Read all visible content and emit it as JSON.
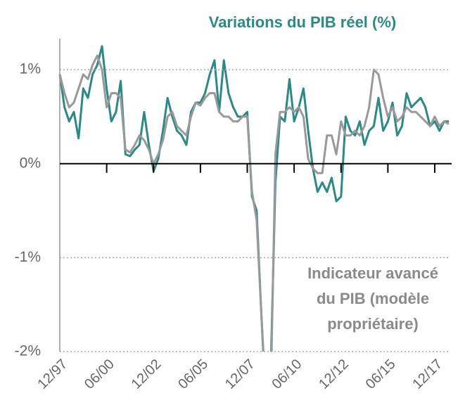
{
  "chart_data": {
    "type": "line",
    "title": "Variations du PIB réel (%)",
    "annotation": [
      "Indicateur avancé",
      "du PIB (modèle",
      "propriétaire)"
    ],
    "categories": [
      "12/97",
      null,
      null,
      null,
      null,
      null,
      null,
      null,
      null,
      null,
      "06/00",
      null,
      null,
      null,
      null,
      null,
      null,
      null,
      null,
      null,
      "12/02",
      null,
      null,
      null,
      null,
      null,
      null,
      null,
      null,
      null,
      "06/05",
      null,
      null,
      null,
      null,
      null,
      null,
      null,
      null,
      null,
      "12/07",
      null,
      null,
      null,
      null,
      null,
      null,
      null,
      null,
      null,
      "06/10",
      null,
      null,
      null,
      null,
      null,
      null,
      null,
      null,
      null,
      "12/12",
      null,
      null,
      null,
      null,
      null,
      null,
      null,
      null,
      null,
      "06/15",
      null,
      null,
      null,
      null,
      null,
      null,
      null,
      null,
      null,
      "12/17",
      null,
      null,
      null
    ],
    "series": [
      {
        "color": "#2a8a86",
        "values": [
          0.95,
          0.6,
          0.45,
          0.55,
          0.27,
          0.8,
          0.7,
          0.95,
          1.05,
          1.25,
          0.8,
          0.45,
          0.55,
          0.88,
          0.1,
          0.08,
          0.15,
          0.2,
          0.55,
          0.2,
          -0.08,
          0.05,
          0.35,
          0.7,
          0.5,
          0.35,
          0.3,
          0.2,
          0.55,
          0.65,
          0.65,
          0.75,
          0.95,
          1.1,
          0.55,
          1.1,
          0.75,
          0.6,
          0.5,
          0.5,
          0.55,
          -0.35,
          -0.5,
          -1.6,
          -2.6,
          -2.2,
          -0.2,
          0.5,
          0.45,
          0.9,
          0.45,
          0.6,
          0.8,
          0.35,
          -0.05,
          -0.3,
          -0.2,
          -0.3,
          -0.15,
          -0.4,
          -0.35,
          0.5,
          0.35,
          0.3,
          0.45,
          0.2,
          0.35,
          0.4,
          0.7,
          0.35,
          0.45,
          0.65,
          0.3,
          0.4,
          0.75,
          0.6,
          0.65,
          0.7,
          0.6,
          0.4,
          0.45,
          0.35,
          0.45,
          0.45
        ]
      },
      {
        "color": "#999999",
        "values": [
          0.95,
          0.75,
          0.6,
          0.65,
          0.8,
          0.95,
          0.9,
          1.05,
          1.15,
          1.0,
          0.6,
          0.75,
          0.75,
          0.7,
          0.15,
          0.12,
          0.2,
          0.3,
          0.25,
          0.15,
          0.0,
          0.1,
          0.25,
          0.5,
          0.55,
          0.4,
          0.35,
          0.3,
          0.5,
          0.65,
          0.62,
          0.7,
          0.75,
          0.75,
          0.55,
          0.5,
          0.5,
          0.45,
          0.45,
          0.5,
          0.5,
          -0.3,
          -0.6,
          -1.6,
          -2.5,
          -2.5,
          0.1,
          0.55,
          0.55,
          0.6,
          0.55,
          0.6,
          0.5,
          0.05,
          -0.05,
          -0.1,
          -0.1,
          0.3,
          0.3,
          0.1,
          0.45,
          0.3,
          0.3,
          0.35,
          0.3,
          0.4,
          0.6,
          1.0,
          0.95,
          0.7,
          0.5,
          0.6,
          0.45,
          0.5,
          0.6,
          0.55,
          0.55,
          0.5,
          0.45,
          0.4,
          0.5,
          0.4,
          0.45,
          0.42
        ]
      }
    ],
    "ylim": [
      -2,
      1.33
    ],
    "yticks": [
      {
        "value": 1,
        "label": "1%"
      },
      {
        "value": 0,
        "label": "0%"
      },
      {
        "value": -1,
        "label": "-1%"
      },
      {
        "value": -2,
        "label": "-2%"
      }
    ],
    "grid": true
  }
}
